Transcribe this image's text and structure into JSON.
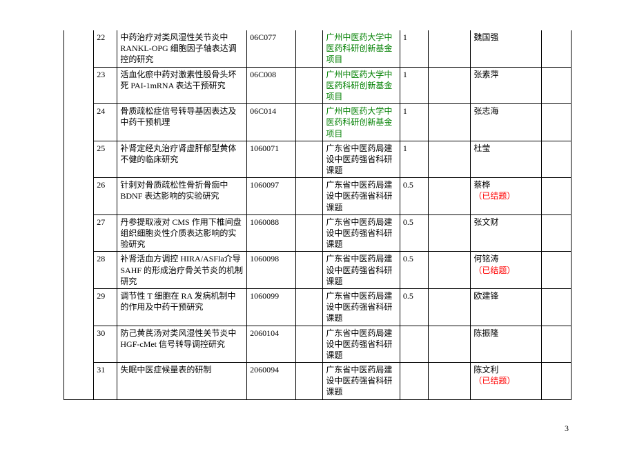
{
  "pageNumber": "3",
  "rows": [
    {
      "num": "22",
      "title": "中药治疗对类风湿性关节炎中 RANKL-OPG 细胞因子轴表达调控的研究",
      "code": "06C077",
      "fund": "广州中医药大学中医药科研创新基金项目",
      "fundColor": "green",
      "amount": "1",
      "person": "魏国强",
      "note": ""
    },
    {
      "num": "23",
      "title": "活血化瘀中药对激素性股骨头坏死 PAI-1mRNA 表达干预研究",
      "code": "06C008",
      "fund": "广州中医药大学中医药科研创新基金项目",
      "fundColor": "green",
      "amount": "1",
      "person": "张素萍",
      "note": ""
    },
    {
      "num": "24",
      "title": "骨质疏松症信号转导基因表达及中药干预机理",
      "code": "06C014",
      "fund": "广州中医药大学中医药科研创新基金项目",
      "fundColor": "green",
      "amount": "1",
      "person": "张志海",
      "note": ""
    },
    {
      "num": "25",
      "title": "补肾定经丸治疗肾虚肝郁型黄体不健的临床研究",
      "code": "1060071",
      "fund": "广东省中医药局建设中医药强省科研课题",
      "fundColor": "",
      "amount": "1",
      "person": "杜莹",
      "note": ""
    },
    {
      "num": "26",
      "title": "针刺对骨质疏松性骨折骨痂中 BDNF 表达影响的实验研究",
      "code": "1060097",
      "fund": "广东省中医药局建设中医药强省科研课题",
      "fundColor": "",
      "amount": "0.5",
      "person": "蔡桦",
      "note": "（已结题）"
    },
    {
      "num": "27",
      "title": "丹参提取液对 CMS 作用下椎间盘组织细胞炎性介质表达影响的实验研究",
      "code": "1060088",
      "fund": "广东省中医药局建设中医药强省科研课题",
      "fundColor": "",
      "amount": "0.5",
      "person": "张文财",
      "note": ""
    },
    {
      "num": "28",
      "title": "补肾活血方调控 HIRA/ASFla介导 SAHF 的形成治疗骨关节炎的机制研究",
      "code": "1060098",
      "fund": "广东省中医药局建设中医药强省科研课题",
      "fundColor": "",
      "amount": "0.5",
      "person": "何铭涛",
      "note": "（已结题）"
    },
    {
      "num": "29",
      "title": "调节性 T 细胞在 RA 发病机制中的作用及中药干预研究",
      "code": "1060099",
      "fund": "广东省中医药局建设中医药强省科研课题",
      "fundColor": "",
      "amount": "0.5",
      "person": "欧建锋",
      "note": ""
    },
    {
      "num": "30",
      "title": "防己黄芪汤对类风湿性关节炎中 HGF-cMet 信号转导调控研究",
      "code": "2060104",
      "fund": "广东省中医药局建设中医药强省科研课题",
      "fundColor": "",
      "amount": "",
      "person": "陈振隆",
      "note": ""
    },
    {
      "num": "31",
      "title": "失眠中医症候量表的研制",
      "code": "2060094",
      "fund": "广东省中医药局建设中医药强省科研课题",
      "fundColor": "",
      "amount": "",
      "person": "陈文利",
      "note": "（已结题）"
    }
  ]
}
